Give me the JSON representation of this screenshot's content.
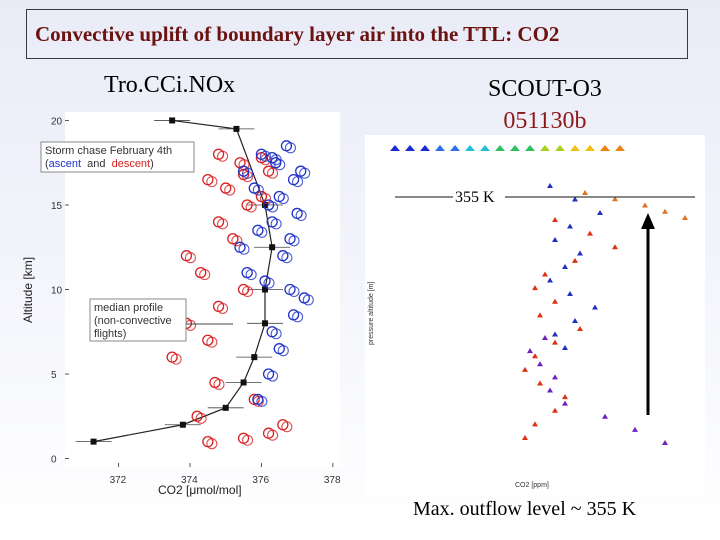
{
  "slide": {
    "title": "Convective uplift of boundary layer air into the TTL:  CO2",
    "left_panel_label": "Tro.CCi.NOx",
    "right_panel_label_line1": "SCOUT-O3",
    "right_panel_label_line2": "051130b",
    "footer_text": "Max. outflow level ~ 355 K"
  },
  "chart_data": [
    {
      "type": "scatter",
      "title": "",
      "xlabel": "CO2 [μmol/mol]",
      "ylabel": "Altitude [km]",
      "xlim": [
        370.5,
        378.2
      ],
      "ylim": [
        -0.5,
        20.5
      ],
      "xticks": [
        "372",
        "374",
        "376",
        "378"
      ],
      "yticks": [
        "0",
        "5",
        "10",
        "15",
        "20"
      ],
      "legend": {
        "line1": "Storm chase February 4th",
        "ascent": "ascent",
        "and": "and",
        "descent": "descent",
        "paren_open": "(",
        "paren_close": ")",
        "ascent_color": "#1f32c8",
        "descent_color": "#d82020"
      },
      "median_label": [
        "median profile",
        "(non-convective",
        "flights)"
      ],
      "median_profile": {
        "co2": [
          371.3,
          373.8,
          375.0,
          375.5,
          375.8,
          376.1,
          376.1,
          376.3,
          376.1,
          375.3,
          373.5
        ],
        "altitude": [
          1.0,
          2.0,
          3.0,
          4.5,
          6.0,
          8.0,
          10.0,
          12.5,
          15.0,
          19.5,
          20.0
        ]
      },
      "ascent_series": {
        "name": "ascent",
        "co2": [
          375.9,
          376.2,
          376.5,
          376.3,
          376.9,
          377.2,
          376.8,
          376.1,
          375.6,
          375.4,
          376.6,
          376.8,
          375.9,
          376.3,
          377.0,
          376.2,
          376.5,
          375.8,
          376.9,
          377.1,
          376.4,
          375.5,
          376.0,
          376.7,
          376.3
        ],
        "altitude": [
          3.5,
          5.0,
          6.5,
          7.5,
          8.5,
          9.5,
          10.0,
          10.5,
          11.0,
          12.5,
          12.0,
          13.0,
          13.5,
          14.0,
          14.5,
          15.0,
          15.5,
          16.0,
          16.5,
          17.0,
          17.5,
          17.0,
          18.0,
          18.5,
          17.8
        ]
      },
      "descent_series": {
        "name": "descent",
        "co2": [
          374.5,
          375.5,
          376.2,
          376.6,
          374.2,
          375.8,
          374.7,
          373.5,
          374.5,
          373.9,
          374.8,
          375.5,
          374.3,
          373.9,
          375.2,
          374.8,
          375.6,
          376.0,
          375.0,
          374.5,
          376.2,
          375.4,
          376.0,
          374.8,
          375.5
        ],
        "altitude": [
          1.0,
          1.2,
          1.5,
          2.0,
          2.5,
          3.5,
          4.5,
          6.0,
          7.0,
          8.0,
          9.0,
          10.0,
          11.0,
          12.0,
          13.0,
          14.0,
          15.0,
          15.5,
          16.0,
          16.5,
          17.0,
          17.5,
          17.8,
          18.0,
          16.8
        ]
      }
    },
    {
      "type": "scatter",
      "title": "",
      "xlabel": "CO2 [ppm]",
      "ylabel": "pressure altitude [m]",
      "annotation": "355 K",
      "series_colors": [
        "#e03010",
        "#2030c0",
        "#7020c0",
        "#e07020"
      ]
    }
  ]
}
